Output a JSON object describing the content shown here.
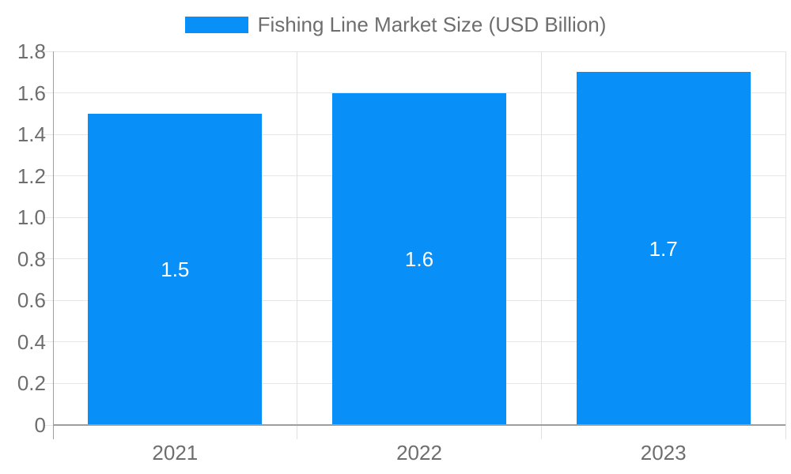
{
  "chart_data": {
    "type": "bar",
    "title": "Fishing Line Market Size (USD Billion)",
    "categories": [
      "2021",
      "2022",
      "2023"
    ],
    "values": [
      1.5,
      1.6,
      1.7
    ],
    "bar_labels": [
      "1.5",
      "1.6",
      "1.7"
    ],
    "xlabel": "",
    "ylabel": "",
    "ylim": [
      0,
      1.8
    ],
    "ytick_values": [
      0,
      0.2,
      0.4,
      0.6,
      0.8,
      1.0,
      1.2,
      1.4,
      1.6,
      1.8
    ],
    "ytick_labels": [
      "0",
      "0.2",
      "0.4",
      "0.6",
      "0.8",
      "1.0",
      "1.2",
      "1.4",
      "1.6",
      "1.8"
    ],
    "grid": true,
    "legend_position": "top-center",
    "colors": {
      "bar": "#0990f8",
      "axis_text": "#6e6e6e",
      "gridline": "#e6e6e6",
      "vertical_gridline": "#e0e0e0",
      "axis_line": "#9e9e9e",
      "bar_label_text": "#ffffff",
      "background": "#ffffff"
    }
  }
}
